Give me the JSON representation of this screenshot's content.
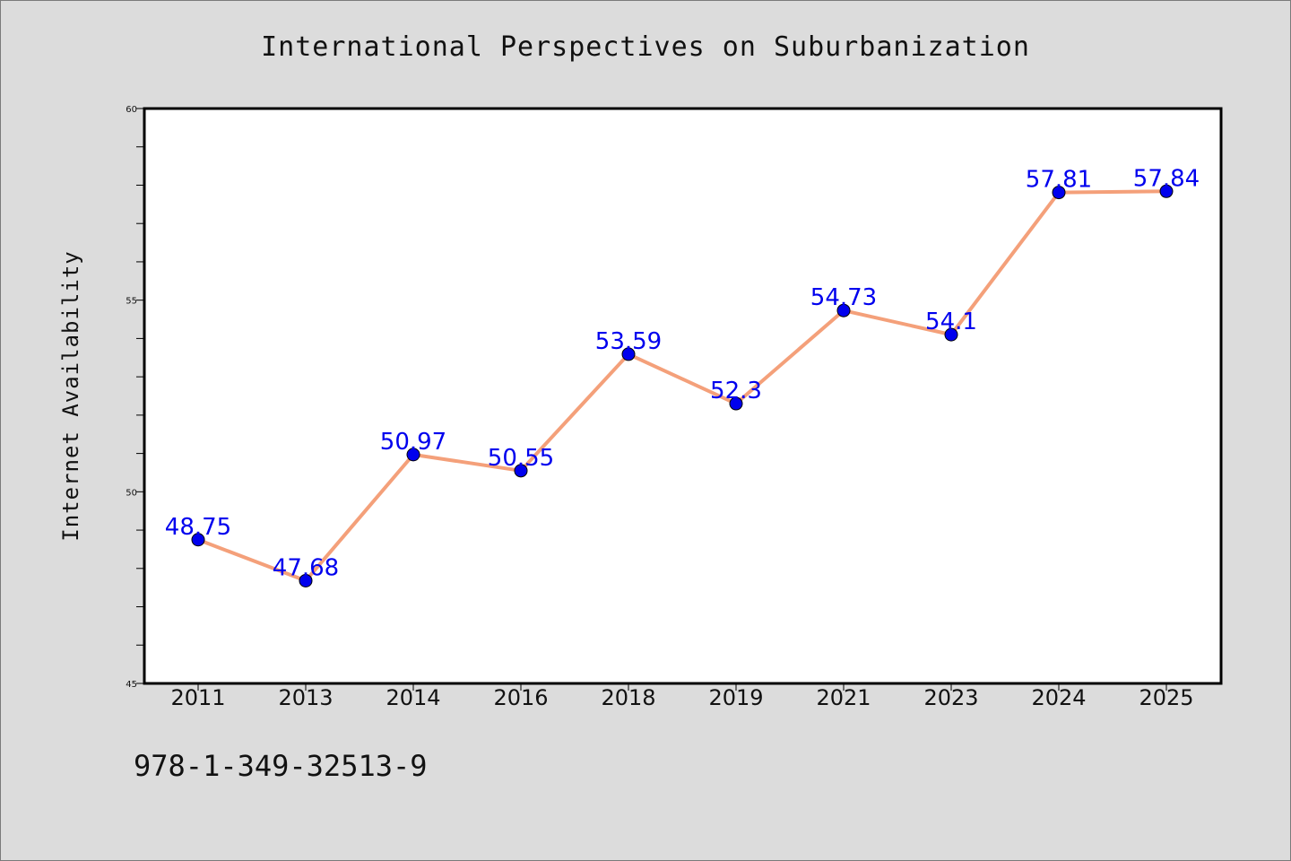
{
  "chart_data": {
    "type": "line",
    "title": "International Perspectives on Suburbanization",
    "xlabel": "",
    "ylabel": "Internet Availability",
    "categories": [
      "2011",
      "2013",
      "2014",
      "2016",
      "2018",
      "2019",
      "2021",
      "2023",
      "2024",
      "2025"
    ],
    "series": [
      {
        "values": [
          48.75,
          47.68,
          50.97,
          50.55,
          53.59,
          52.3,
          54.73,
          54.1,
          57.81,
          57.84
        ],
        "data_labels": [
          "48.75",
          "47.68",
          "50.97",
          "50.55",
          "53.59",
          "52.3",
          "54.73",
          "54.1",
          "57.81",
          "57.84"
        ],
        "line_color": "#f4a07a",
        "marker_color": "#0000ee"
      }
    ],
    "ylim": [
      45,
      60
    ],
    "y_ticks": [
      "45",
      "50",
      "55",
      "60"
    ],
    "y_minor_step": 1,
    "grid": false,
    "legend": "none",
    "data_label_color": "#0000ee"
  },
  "footer": {
    "code": "978-1-349-32513-9"
  },
  "colors": {
    "background": "#dcdcdc",
    "plot_background": "#ffffff",
    "text": "#111111"
  }
}
